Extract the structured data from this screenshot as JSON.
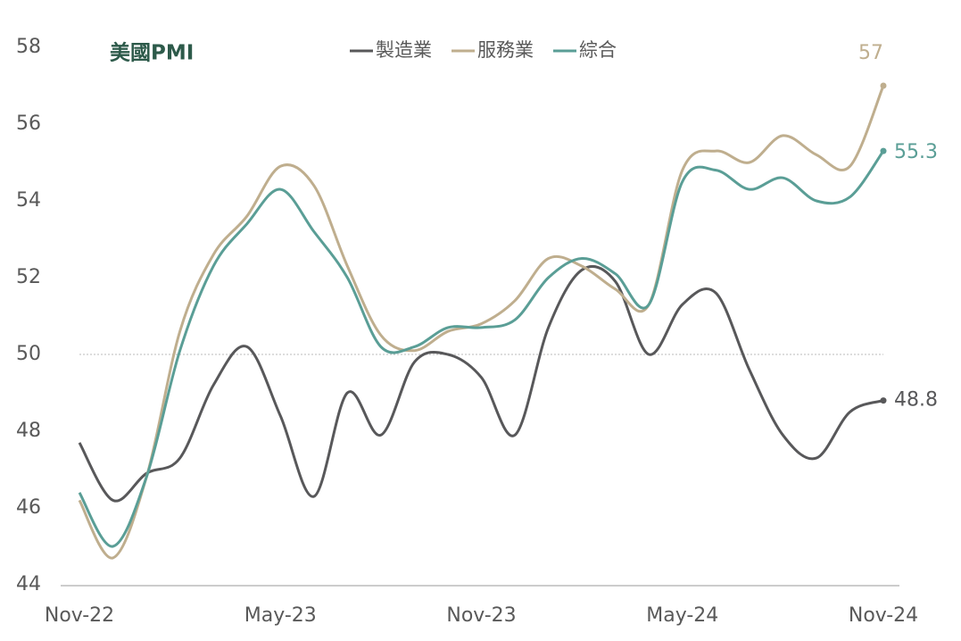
{
  "chart_data": {
    "type": "line",
    "title": "美國PMI",
    "categories": [
      "Nov-22",
      null,
      null,
      null,
      null,
      null,
      "May-23",
      null,
      null,
      null,
      null,
      null,
      "Nov-23",
      null,
      null,
      null,
      null,
      null,
      "May-24",
      null,
      null,
      null,
      null,
      null,
      "Nov-24"
    ],
    "series": [
      {
        "name": "製造業",
        "color": "#58585a",
        "values": [
          47.7,
          46.2,
          46.9,
          47.3,
          49.2,
          50.2,
          48.4,
          46.3,
          49.0,
          47.9,
          49.8,
          50.0,
          49.4,
          47.9,
          50.7,
          52.2,
          51.9,
          50.0,
          51.3,
          51.6,
          49.6,
          47.9,
          47.3,
          48.5,
          48.8
        ]
      },
      {
        "name": "服務業",
        "color": "#bfae8e",
        "values": [
          46.2,
          44.7,
          46.8,
          50.6,
          52.6,
          53.6,
          54.9,
          54.4,
          52.3,
          50.5,
          50.1,
          50.6,
          50.8,
          51.4,
          52.5,
          52.3,
          51.7,
          51.3,
          54.8,
          55.3,
          55.0,
          55.7,
          55.2,
          54.9,
          57
        ]
      },
      {
        "name": "綜合",
        "color": "#5a9e96",
        "values": [
          46.4,
          45.0,
          46.8,
          50.1,
          52.3,
          53.4,
          54.3,
          53.2,
          52.0,
          50.2,
          50.2,
          50.7,
          50.7,
          50.9,
          52.0,
          52.5,
          52.1,
          51.3,
          54.5,
          54.8,
          54.3,
          54.6,
          54.0,
          54.1,
          55.3
        ]
      }
    ],
    "ylim": [
      44,
      58
    ],
    "yticks": [
      44,
      46,
      48,
      50,
      52,
      54,
      56,
      58
    ],
    "reference_line": 50
  }
}
